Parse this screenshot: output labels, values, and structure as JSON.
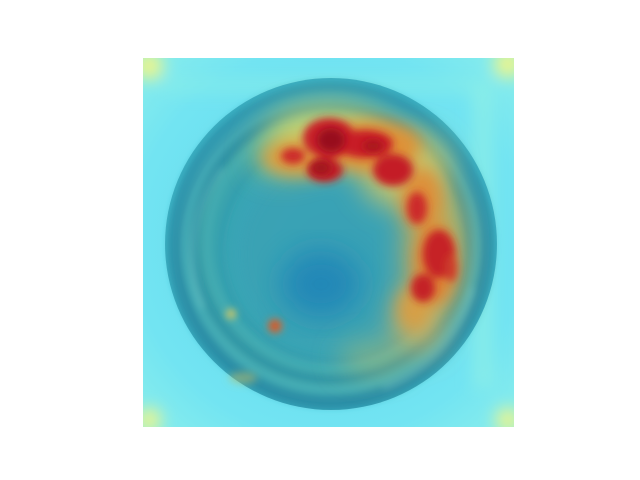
{
  "image": {
    "subject": "",
    "overlay": "heatmap",
    "colors": {
      "page_background": "#ffffff",
      "low_cyan": "#6fe3f0",
      "mid_teal": "#2a9db5",
      "deep_teal": "#1f8aa8",
      "warm_yellow": "#e2e070",
      "warm_orange": "#e39a3a",
      "hot_red": "#c81e28",
      "dark_red": "#9a0f1c"
    }
  }
}
